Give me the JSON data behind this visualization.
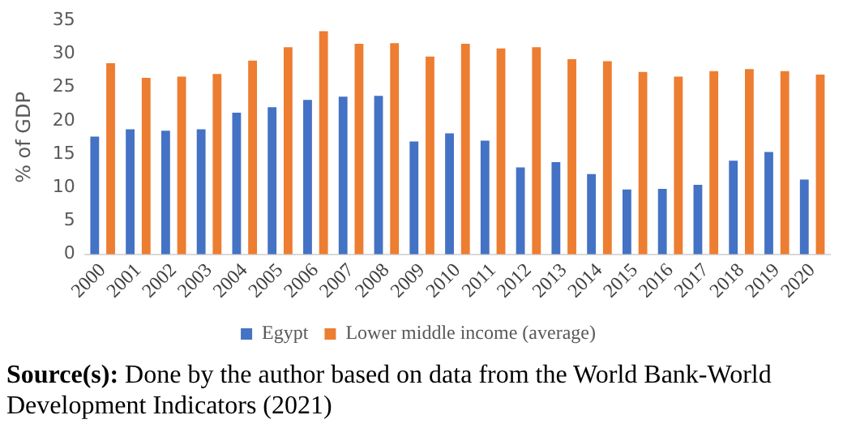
{
  "chart_data": {
    "type": "bar",
    "ylabel": "% of GDP",
    "categories": [
      "2000",
      "2001",
      "2002",
      "2003",
      "2004",
      "2005",
      "2006",
      "2007",
      "2008",
      "2009",
      "2010",
      "2011",
      "2012",
      "2013",
      "2014",
      "2015",
      "2016",
      "2017",
      "2018",
      "2019",
      "2020"
    ],
    "series": [
      {
        "name": "Egypt",
        "color": "#4472c4",
        "values": [
          17.6,
          18.7,
          18.5,
          18.7,
          21.2,
          22.0,
          23.1,
          23.6,
          23.7,
          16.9,
          18.1,
          17.0,
          13.0,
          13.8,
          12.0,
          9.7,
          9.8,
          10.4,
          14.0,
          15.3,
          11.2
        ]
      },
      {
        "name": "Lower middle income (average)",
        "color": "#ed7d31",
        "values": [
          28.6,
          26.4,
          26.6,
          27.0,
          29.0,
          31.0,
          33.4,
          31.5,
          31.6,
          29.6,
          31.5,
          30.8,
          31.0,
          29.2,
          28.9,
          27.3,
          26.6,
          27.4,
          27.7,
          27.4,
          26.9
        ]
      }
    ],
    "ylim": [
      0,
      35
    ],
    "yticks": [
      0,
      5,
      10,
      15,
      20,
      25,
      30,
      35
    ],
    "grid": false,
    "legend": "bottom",
    "annotations": [
      "Source(s): Done by the author based on data from the World Bank-World Development Indicators (2021)"
    ]
  }
}
